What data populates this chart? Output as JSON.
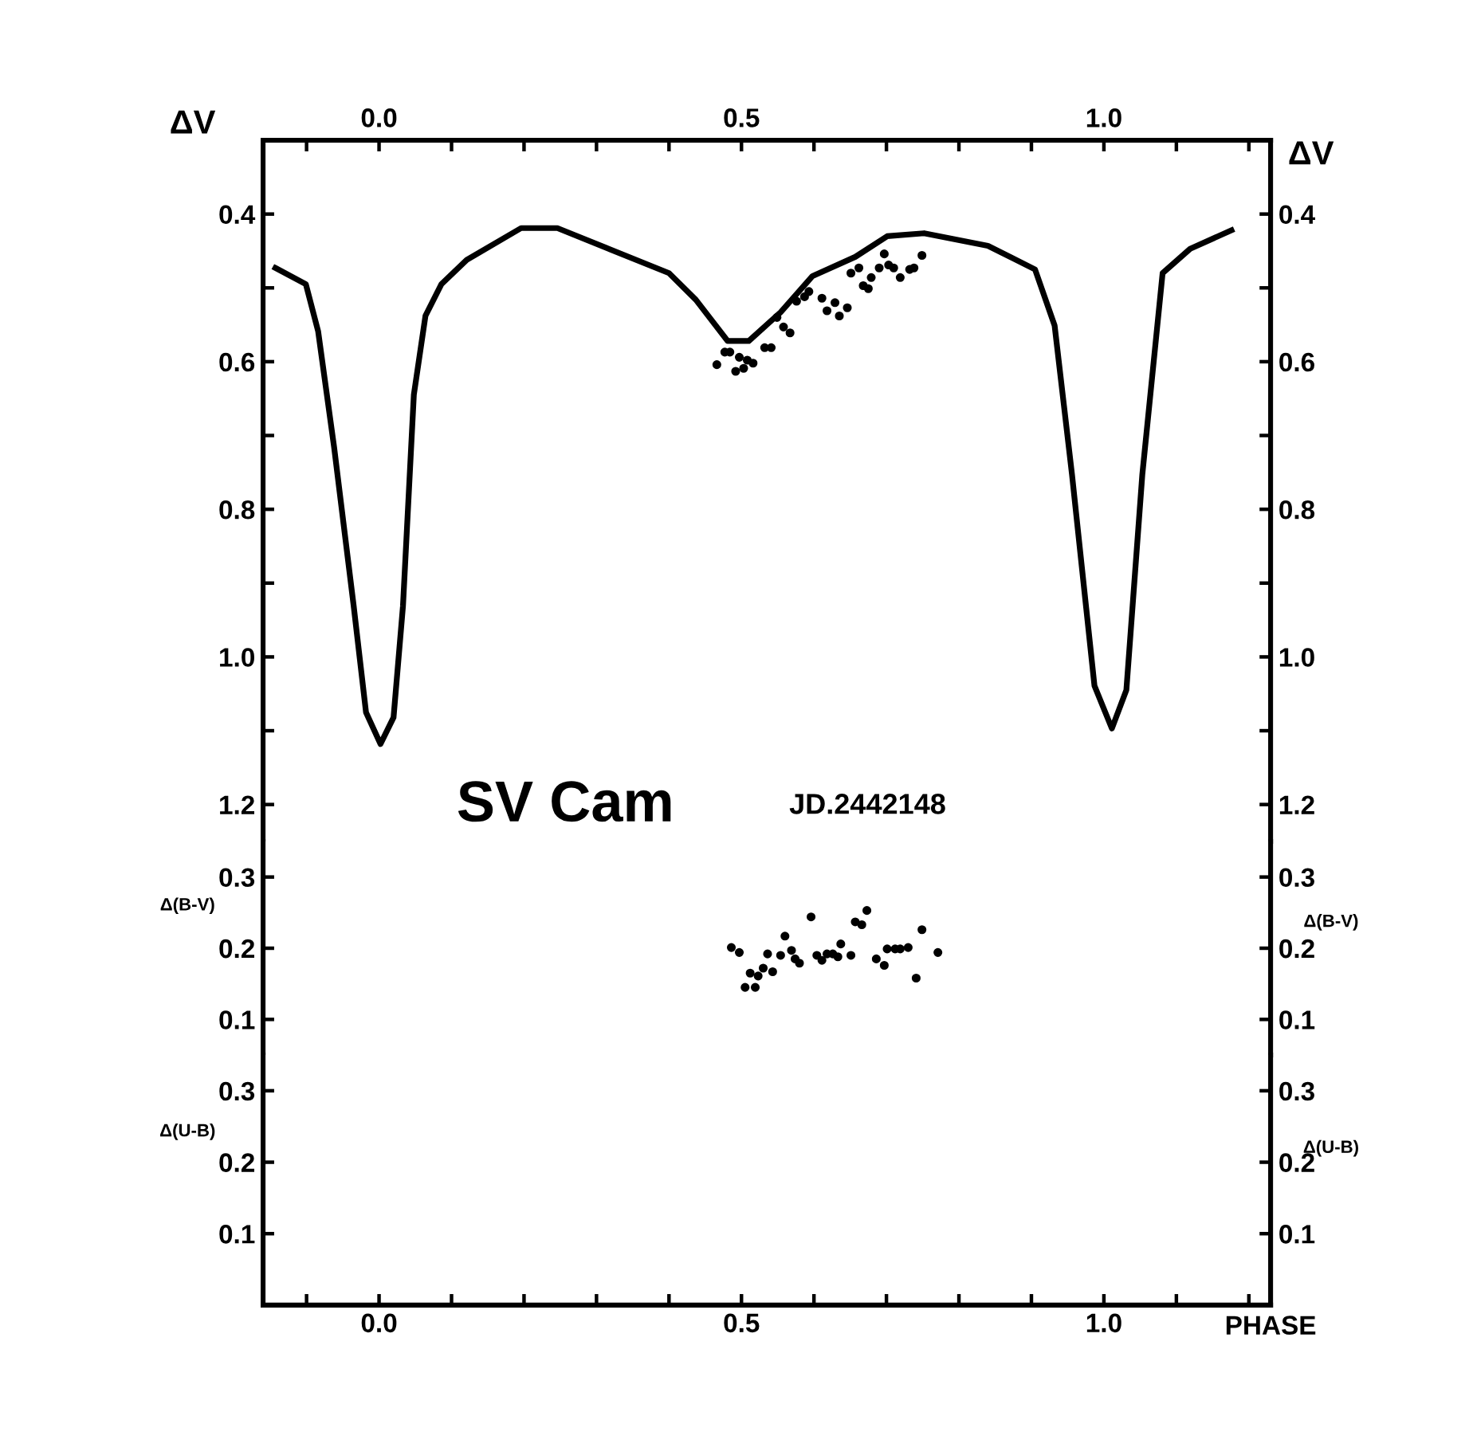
{
  "chart_data": [
    {
      "type": "line",
      "ylabel": "ΔV",
      "y2label": "ΔV",
      "annotations": [
        "SV Cam",
        "JD.2442148"
      ],
      "xlim": [
        -0.16,
        1.23
      ],
      "ylim": [
        1.25,
        0.3
      ],
      "y2lim": [
        1.25,
        0.3
      ],
      "x2lim": [
        -0.16,
        1.23
      ],
      "x2ticks": [
        {
          "value": -0.1,
          "label": null
        },
        {
          "value": 0.0,
          "label": "0.0"
        },
        {
          "value": 0.1,
          "label": null
        },
        {
          "value": 0.2,
          "label": null
        },
        {
          "value": 0.3,
          "label": null
        },
        {
          "value": 0.4,
          "label": null
        },
        {
          "value": 0.5,
          "label": "0.5"
        },
        {
          "value": 0.6,
          "label": null
        },
        {
          "value": 0.7,
          "label": null
        },
        {
          "value": 0.8,
          "label": null
        },
        {
          "value": 0.9,
          "label": null
        },
        {
          "value": 1.0,
          "label": "1.0"
        },
        {
          "value": 1.1,
          "label": null
        },
        {
          "value": 1.2,
          "label": null
        }
      ],
      "yticks": [
        0.4,
        {
          "value": 0.5,
          "label": null
        },
        0.6,
        {
          "value": 0.7,
          "label": null
        },
        0.8,
        {
          "value": 0.9,
          "label": null
        },
        {
          "value": 1.0,
          "label": "1.0"
        },
        {
          "value": 1.1,
          "label": null
        },
        1.2
      ],
      "y2ticks": [
        0.4,
        {
          "value": 0.5,
          "label": null
        },
        0.6,
        {
          "value": 0.7,
          "label": null
        },
        0.8,
        {
          "value": 0.9,
          "label": null
        },
        {
          "value": 1.0,
          "label": "1.0"
        },
        {
          "value": 1.1,
          "label": null
        },
        1.2
      ],
      "tick_labels": "y",
      "grid": false,
      "legend": false,
      "series": [
        {
          "type": "line",
          "color": "#000000",
          "marker": "none",
          "x": [
            -0.143,
            -0.101,
            -0.084,
            -0.062,
            -0.035,
            -0.018,
            0.002,
            0.02,
            0.033,
            0.048,
            0.064,
            0.086,
            0.121,
            0.196,
            0.246,
            0.4,
            0.437,
            0.481,
            0.51,
            0.554,
            0.598,
            0.657,
            0.701,
            0.752,
            0.84,
            0.905,
            0.932,
            0.956,
            0.987,
            1.011,
            1.031,
            1.053,
            1.081,
            1.119,
            1.176
          ],
          "values": [
            0.473,
            0.495,
            0.559,
            0.716,
            0.931,
            1.075,
            1.118,
            1.082,
            0.931,
            0.645,
            0.538,
            0.495,
            0.462,
            0.419,
            0.419,
            0.48,
            0.516,
            0.572,
            0.572,
            0.533,
            0.484,
            0.458,
            0.43,
            0.426,
            0.443,
            0.475,
            0.551,
            0.753,
            1.039,
            1.097,
            1.045,
            0.753,
            0.48,
            0.447,
            0.422
          ]
        },
        {
          "type": "scatter",
          "color": "#000000",
          "marker": "circle",
          "x": [
            0.466,
            0.477,
            0.484,
            0.492,
            0.497,
            0.503,
            0.508,
            0.516,
            0.532,
            0.541,
            0.549,
            0.558,
            0.567,
            0.576,
            0.587,
            0.593,
            0.611,
            0.618,
            0.629,
            0.635,
            0.646,
            0.651,
            0.662,
            0.668,
            0.675,
            0.679,
            0.69,
            0.697,
            0.703,
            0.71,
            0.719,
            0.732,
            0.738,
            0.749
          ],
          "values": [
            0.604,
            0.587,
            0.587,
            0.613,
            0.594,
            0.609,
            0.598,
            0.602,
            0.581,
            0.581,
            0.54,
            0.553,
            0.561,
            0.518,
            0.512,
            0.505,
            0.514,
            0.531,
            0.52,
            0.538,
            0.527,
            0.48,
            0.473,
            0.497,
            0.501,
            0.486,
            0.473,
            0.454,
            0.469,
            0.473,
            0.486,
            0.475,
            0.473,
            0.456
          ]
        }
      ]
    },
    {
      "type": "scatter",
      "ylabel": "Δ(B-V)",
      "y2label": "Δ(B-V)",
      "xlim": [
        -0.16,
        1.23
      ],
      "ylim": [
        0.05,
        0.35
      ],
      "y2lim": [
        0.05,
        0.35
      ],
      "yticks": [
        0.1,
        0.2,
        0.3
      ],
      "y2ticks": [
        0.1,
        0.2,
        0.3
      ],
      "tick_labels": "y",
      "grid": false,
      "legend": false,
      "marker": "circle",
      "series": [
        {
          "color": "#000000",
          "x": [
            0.486,
            0.497,
            0.505,
            0.512,
            0.519,
            0.523,
            0.53,
            0.536,
            0.543,
            0.554,
            0.56,
            0.569,
            0.574,
            0.58,
            0.596,
            0.604,
            0.611,
            0.618,
            0.626,
            0.633,
            0.637,
            0.651,
            0.657,
            0.666,
            0.673,
            0.686,
            0.697,
            0.701,
            0.712,
            0.719,
            0.73,
            0.741,
            0.749,
            0.771
          ],
          "values": [
            0.201,
            0.194,
            0.145,
            0.165,
            0.145,
            0.161,
            0.172,
            0.192,
            0.167,
            0.19,
            0.217,
            0.197,
            0.185,
            0.179,
            0.244,
            0.19,
            0.183,
            0.192,
            0.192,
            0.188,
            0.206,
            0.19,
            0.237,
            0.233,
            0.253,
            0.185,
            0.176,
            0.199,
            0.199,
            0.199,
            0.201,
            0.158,
            0.226,
            0.194
          ]
        }
      ]
    },
    {
      "type": "scatter",
      "ylabel": "Δ(U-B)",
      "y2label": "Δ(U-B)",
      "xlabel": "PHASE",
      "xlim": [
        -0.16,
        1.23
      ],
      "ylim": [
        0,
        0.35
      ],
      "y2lim": [
        0,
        0.35
      ],
      "yticks": [
        0.1,
        0.2,
        0.3
      ],
      "y2ticks": [
        0.1,
        0.2,
        0.3
      ],
      "xticks": [
        {
          "value": -0.1,
          "label": null
        },
        {
          "value": 0.0,
          "label": "0.0"
        },
        {
          "value": 0.1,
          "label": null
        },
        {
          "value": 0.2,
          "label": null
        },
        {
          "value": 0.3,
          "label": null
        },
        {
          "value": 0.4,
          "label": null
        },
        {
          "value": 0.5,
          "label": "0.5"
        },
        {
          "value": 0.6,
          "label": null
        },
        {
          "value": 0.7,
          "label": null
        },
        {
          "value": 0.8,
          "label": null
        },
        {
          "value": 0.9,
          "label": null
        },
        {
          "value": 1.0,
          "label": "1.0"
        },
        {
          "value": 1.1,
          "label": null
        },
        {
          "value": 1.2,
          "label": null
        }
      ],
      "grid": false,
      "legend": false
    }
  ]
}
